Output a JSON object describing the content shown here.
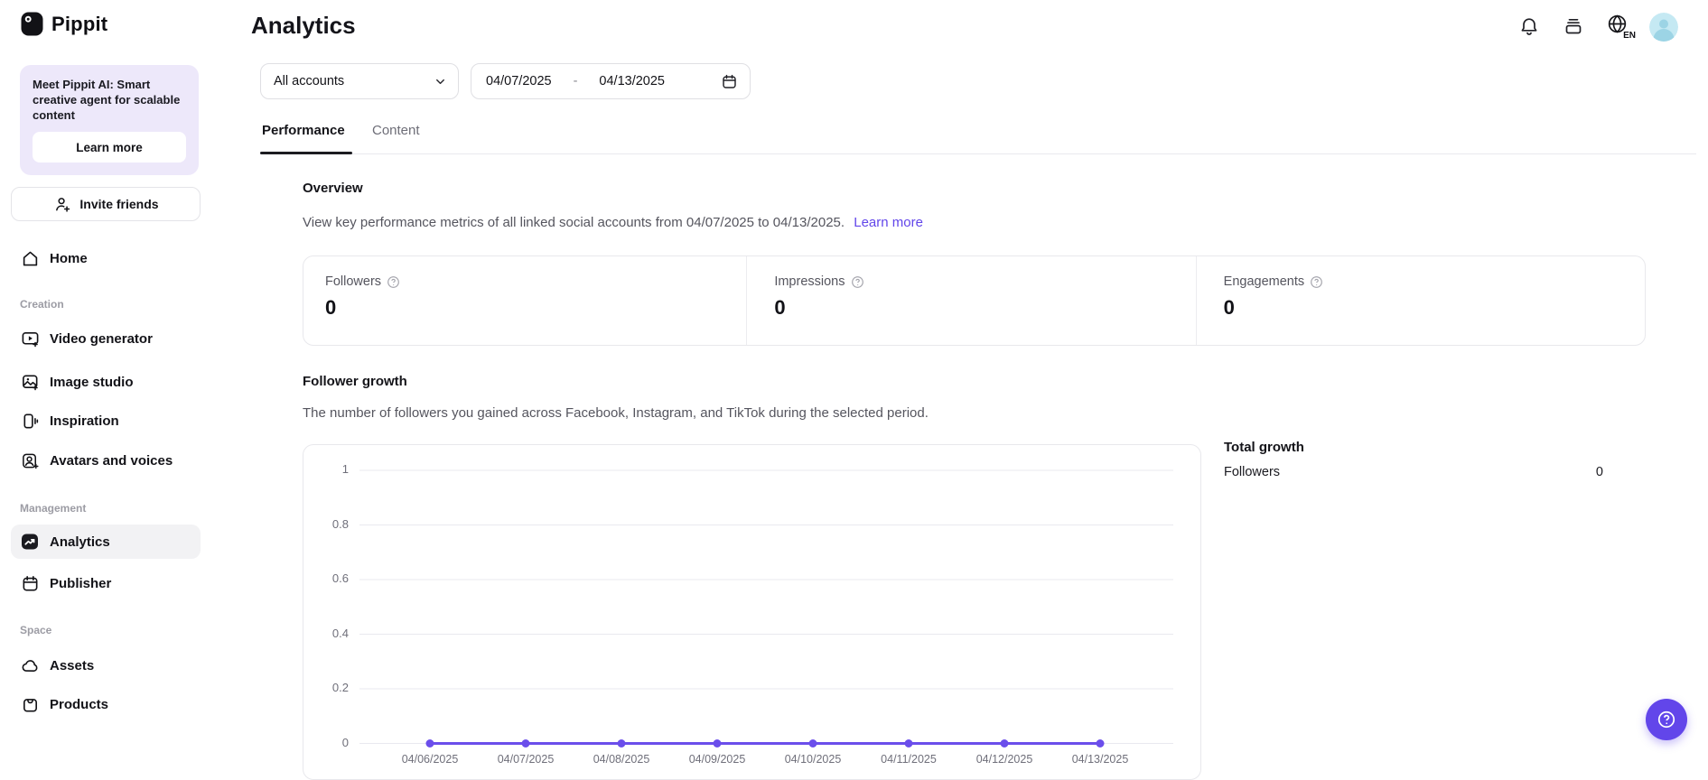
{
  "accent": "#6246EA",
  "brand": {
    "name": "Pippit"
  },
  "sidebar": {
    "promo": {
      "bold": "Meet Pippit AI",
      "rest": ": Smart creative agent for scalable content",
      "button": "Learn more"
    },
    "invite_label": "Invite friends",
    "home_label": "Home",
    "sections": [
      {
        "label": "Creation",
        "items": [
          {
            "name": "video-generator",
            "label": "Video generator"
          },
          {
            "name": "image-studio",
            "label": "Image studio"
          },
          {
            "name": "inspiration",
            "label": "Inspiration"
          },
          {
            "name": "avatars-and-voices",
            "label": "Avatars and voices"
          }
        ]
      },
      {
        "label": "Management",
        "items": [
          {
            "name": "analytics",
            "label": "Analytics",
            "active": true
          },
          {
            "name": "publisher",
            "label": "Publisher"
          }
        ]
      },
      {
        "label": "Space",
        "items": [
          {
            "name": "assets",
            "label": "Assets"
          },
          {
            "name": "products",
            "label": "Products"
          }
        ]
      }
    ]
  },
  "header": {
    "title": "Analytics",
    "language": "EN"
  },
  "filters": {
    "account_select": "All accounts",
    "date_start": "04/07/2025",
    "date_separator": "-",
    "date_end": "04/13/2025"
  },
  "tabs": [
    {
      "label": "Performance",
      "active": true
    },
    {
      "label": "Content",
      "active": false
    }
  ],
  "overview": {
    "heading": "Overview",
    "description": "View key performance metrics of all linked social accounts from 04/07/2025 to 04/13/2025.",
    "link": "Learn more",
    "metrics": [
      {
        "label": "Followers",
        "value": "0"
      },
      {
        "label": "Impressions",
        "value": "0"
      },
      {
        "label": "Engagements",
        "value": "0"
      }
    ]
  },
  "follower_growth": {
    "heading": "Follower growth",
    "description": "The number of followers you gained across Facebook, Instagram, and TikTok during the selected period.",
    "total": {
      "heading": "Total growth",
      "row_label": "Followers",
      "row_value": "0"
    }
  },
  "chart_data": {
    "type": "line",
    "title": "Follower growth",
    "x": [
      "04/06/2025",
      "04/07/2025",
      "04/08/2025",
      "04/09/2025",
      "04/10/2025",
      "04/11/2025",
      "04/12/2025",
      "04/13/2025"
    ],
    "series": [
      {
        "name": "Followers",
        "values": [
          0,
          0,
          0,
          0,
          0,
          0,
          0,
          0
        ]
      }
    ],
    "xlabel": "",
    "ylabel": "",
    "ylim": [
      0,
      1
    ],
    "yticks": [
      1,
      0.8,
      0.6,
      0.4,
      0.2,
      0
    ],
    "grid": true,
    "legend_position": "none",
    "line_color": "#6B4EEB"
  }
}
